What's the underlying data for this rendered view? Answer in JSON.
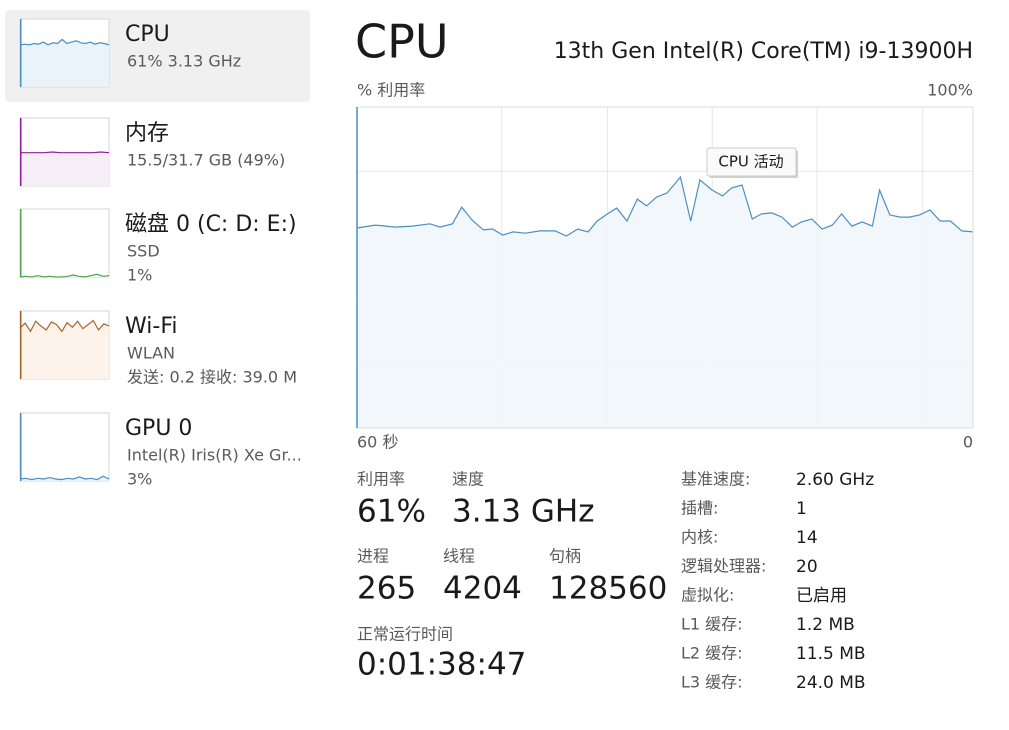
{
  "sidebar": [
    {
      "title": "CPU",
      "lines": [
        "61%  3.13 GHz"
      ],
      "color": "#4a8fc0",
      "fill": "#eaf3fa",
      "graph": [
        62,
        63,
        62,
        64,
        63,
        66,
        62,
        65,
        64,
        70,
        64,
        66,
        68,
        65,
        64,
        66,
        63,
        65,
        64,
        62
      ]
    },
    {
      "title": "内存",
      "lines": [
        "15.5/31.7 GB (49%)"
      ],
      "color": "#8e1f9c",
      "fill": "#f5eef7",
      "graph": [
        49,
        49,
        49,
        49,
        50,
        49,
        49,
        49,
        49,
        49,
        50,
        49
      ]
    },
    {
      "title": "磁盘 0 (C: D: E:)",
      "lines": [
        "SSD",
        "1%"
      ],
      "color": "#4ca64c",
      "fill": "#f1f9f1",
      "graph": [
        0,
        1,
        0,
        2,
        0,
        1,
        0,
        0,
        1,
        3,
        1,
        0,
        2,
        4,
        1,
        2
      ]
    },
    {
      "title": "Wi-Fi",
      "lines": [
        "WLAN",
        "发送: 0.2  接收: 39.0 M"
      ],
      "color": "#a5642a",
      "fill": "#fdf3ea",
      "graph": [
        75,
        82,
        70,
        85,
        78,
        72,
        84,
        80,
        70,
        83,
        76,
        85,
        74,
        80,
        86,
        72,
        81,
        78
      ]
    },
    {
      "title": "GPU 0",
      "lines": [
        "Intel(R) Iris(R) Xe Gr...",
        "3%"
      ],
      "color": "#4a8fc0",
      "fill": "#eaf3fa",
      "graph": [
        3,
        4,
        2,
        4,
        3,
        5,
        3,
        2,
        4,
        3,
        6,
        3,
        4,
        2,
        7,
        3
      ]
    }
  ],
  "header": {
    "title": "CPU",
    "model": "13th Gen Intel(R) Core(TM) i9-13900H"
  },
  "chart_data": {
    "type": "line",
    "y_label": "% 利用率",
    "annotation": "CPU 活动",
    "ylim": [
      0,
      100
    ],
    "yticks": [
      {
        "value": 100,
        "label": "100%"
      }
    ],
    "xlim": [
      60,
      0
    ],
    "xticks": [
      {
        "value": 60,
        "label": "60 秒"
      },
      0
    ],
    "ygrid": [
      20,
      40,
      60,
      80
    ],
    "xgrid": [
      45.9,
      35.6,
      25.4,
      15.2,
      4.9
    ],
    "grid": true,
    "color": "#4a8fc0",
    "fill": "#f1f6fb",
    "x": [
      60,
      58.2,
      56.3,
      54.6,
      52.9,
      51.9,
      50.7,
      49.8,
      48.8,
      47.7,
      46.8,
      45.8,
      44.8,
      43.6,
      42.2,
      40.7,
      39.6,
      38.5,
      37.5,
      36.6,
      35.6,
      34.7,
      33.7,
      32.7,
      31.8,
      30.8,
      29.8,
      28.5,
      27.5,
      26.6,
      25.4,
      24.4,
      23.5,
      22.5,
      21.5,
      20.6,
      19.6,
      18.6,
      17.6,
      16.7,
      15.7,
      14.7,
      13.7,
      12.8,
      11.8,
      10.8,
      9.8,
      9.1,
      8.1,
      7.1,
      6.2,
      5.2,
      4.2,
      3.2,
      2.2,
      1.1,
      0
    ],
    "values": [
      62.3,
      63.2,
      62.6,
      62.9,
      63.6,
      62.6,
      63.6,
      68.8,
      64.8,
      61.7,
      62.0,
      60.1,
      61.1,
      60.7,
      61.4,
      61.4,
      59.8,
      62.0,
      61.1,
      64.5,
      66.7,
      68.5,
      64.5,
      71.3,
      69.2,
      72.0,
      73.2,
      78.2,
      64.5,
      77.3,
      74.1,
      72.3,
      74.8,
      75.7,
      65.1,
      66.7,
      67.0,
      65.7,
      62.6,
      64.2,
      65.1,
      62.0,
      63.2,
      66.7,
      62.9,
      64.2,
      62.9,
      74.1,
      66.4,
      65.7,
      65.7,
      66.4,
      67.9,
      64.5,
      64.5,
      61.4,
      61.1
    ]
  },
  "stats": [
    {
      "label": "利用率",
      "value": "61%"
    },
    {
      "label": "速度",
      "value": "3.13 GHz"
    },
    {
      "label": "进程",
      "value": "265"
    },
    {
      "label": "线程",
      "value": "4204"
    },
    {
      "label": "句柄",
      "value": "128560"
    },
    {
      "label": "正常运行时间",
      "value": "0:01:38:47"
    }
  ],
  "specs": [
    {
      "label": "基准速度:",
      "value": "2.60 GHz"
    },
    {
      "label": "插槽:",
      "value": "1"
    },
    {
      "label": "内核:",
      "value": "14"
    },
    {
      "label": "逻辑处理器:",
      "value": "20"
    },
    {
      "label": "虚拟化:",
      "value": "已启用"
    },
    {
      "label": "L1 缓存:",
      "value": "1.2 MB"
    },
    {
      "label": "L2 缓存:",
      "value": "11.5 MB"
    },
    {
      "label": "L3 缓存:",
      "value": "24.0 MB"
    }
  ]
}
